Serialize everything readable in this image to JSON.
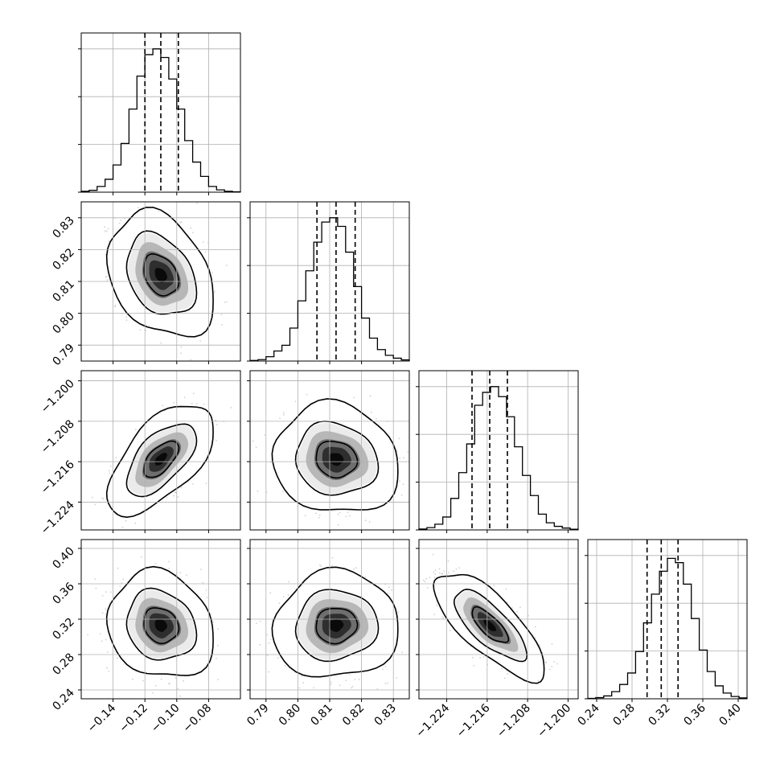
{
  "chart_data": {
    "type": "corner",
    "parameters": [
      {
        "range": [
          -0.16,
          -0.06
        ],
        "ticks": [
          -0.14,
          -0.12,
          -0.1,
          -0.08
        ],
        "tick_labels": [
          "−0.14",
          "−0.12",
          "−0.10",
          "−0.08"
        ],
        "quantiles": [
          -0.12,
          -0.11,
          -0.099
        ]
      },
      {
        "range": [
          0.785,
          0.835
        ],
        "ticks": [
          0.79,
          0.8,
          0.81,
          0.82,
          0.83
        ],
        "tick_labels": [
          "0.79",
          "0.80",
          "0.81",
          "0.82",
          "0.83"
        ],
        "quantiles": [
          0.806,
          0.812,
          0.818
        ]
      },
      {
        "range": [
          -1.2295,
          -1.198
        ],
        "ticks": [
          -1.224,
          -1.216,
          -1.208,
          -1.2
        ],
        "tick_labels": [
          "−1.224",
          "−1.216",
          "−1.208",
          "−1.200"
        ],
        "quantiles": [
          -1.219,
          -1.2155,
          -1.212
        ]
      },
      {
        "range": [
          0.23,
          0.41
        ],
        "ticks": [
          0.24,
          0.28,
          0.32,
          0.36,
          0.4
        ],
        "tick_labels": [
          "0.24",
          "0.28",
          "0.32",
          "0.36",
          "0.40"
        ],
        "quantiles": [
          0.297,
          0.313,
          0.332
        ]
      }
    ],
    "histograms": [
      [
        0.006,
        0.013,
        0.04,
        0.09,
        0.19,
        0.34,
        0.58,
        0.81,
        0.96,
        1.0,
        0.94,
        0.79,
        0.58,
        0.36,
        0.21,
        0.11,
        0.04,
        0.016,
        0.006,
        0.003
      ],
      [
        0.004,
        0.01,
        0.03,
        0.07,
        0.11,
        0.23,
        0.42,
        0.63,
        0.83,
        0.97,
        1.0,
        0.94,
        0.76,
        0.52,
        0.3,
        0.16,
        0.08,
        0.04,
        0.02,
        0.008
      ],
      [
        0.006,
        0.016,
        0.04,
        0.09,
        0.22,
        0.4,
        0.6,
        0.87,
        0.96,
        1.0,
        0.93,
        0.79,
        0.58,
        0.38,
        0.24,
        0.11,
        0.05,
        0.025,
        0.013,
        0.005
      ],
      [
        0.003,
        0.008,
        0.02,
        0.05,
        0.1,
        0.18,
        0.33,
        0.53,
        0.73,
        0.89,
        0.98,
        0.95,
        0.8,
        0.56,
        0.34,
        0.19,
        0.09,
        0.04,
        0.016,
        0.006
      ]
    ],
    "correlations": [
      {
        "x_param": 0,
        "y_param": 1,
        "rho": -0.3
      },
      {
        "x_param": 0,
        "y_param": 2,
        "rho": 0.6
      },
      {
        "x_param": 1,
        "y_param": 2,
        "rho": -0.1
      },
      {
        "x_param": 0,
        "y_param": 3,
        "rho": -0.15
      },
      {
        "x_param": 1,
        "y_param": 3,
        "rho": 0.05
      },
      {
        "x_param": 2,
        "y_param": 3,
        "rho": -0.75
      }
    ],
    "density_levels": [
      0.39,
      0.86,
      0.99
    ],
    "quantile_levels": [
      0.16,
      0.5,
      0.84
    ],
    "grid": true,
    "colors": {
      "lines": "#000000",
      "points": "#9a9a9a",
      "grid": "#b0b0b0",
      "density": "#000000"
    }
  }
}
